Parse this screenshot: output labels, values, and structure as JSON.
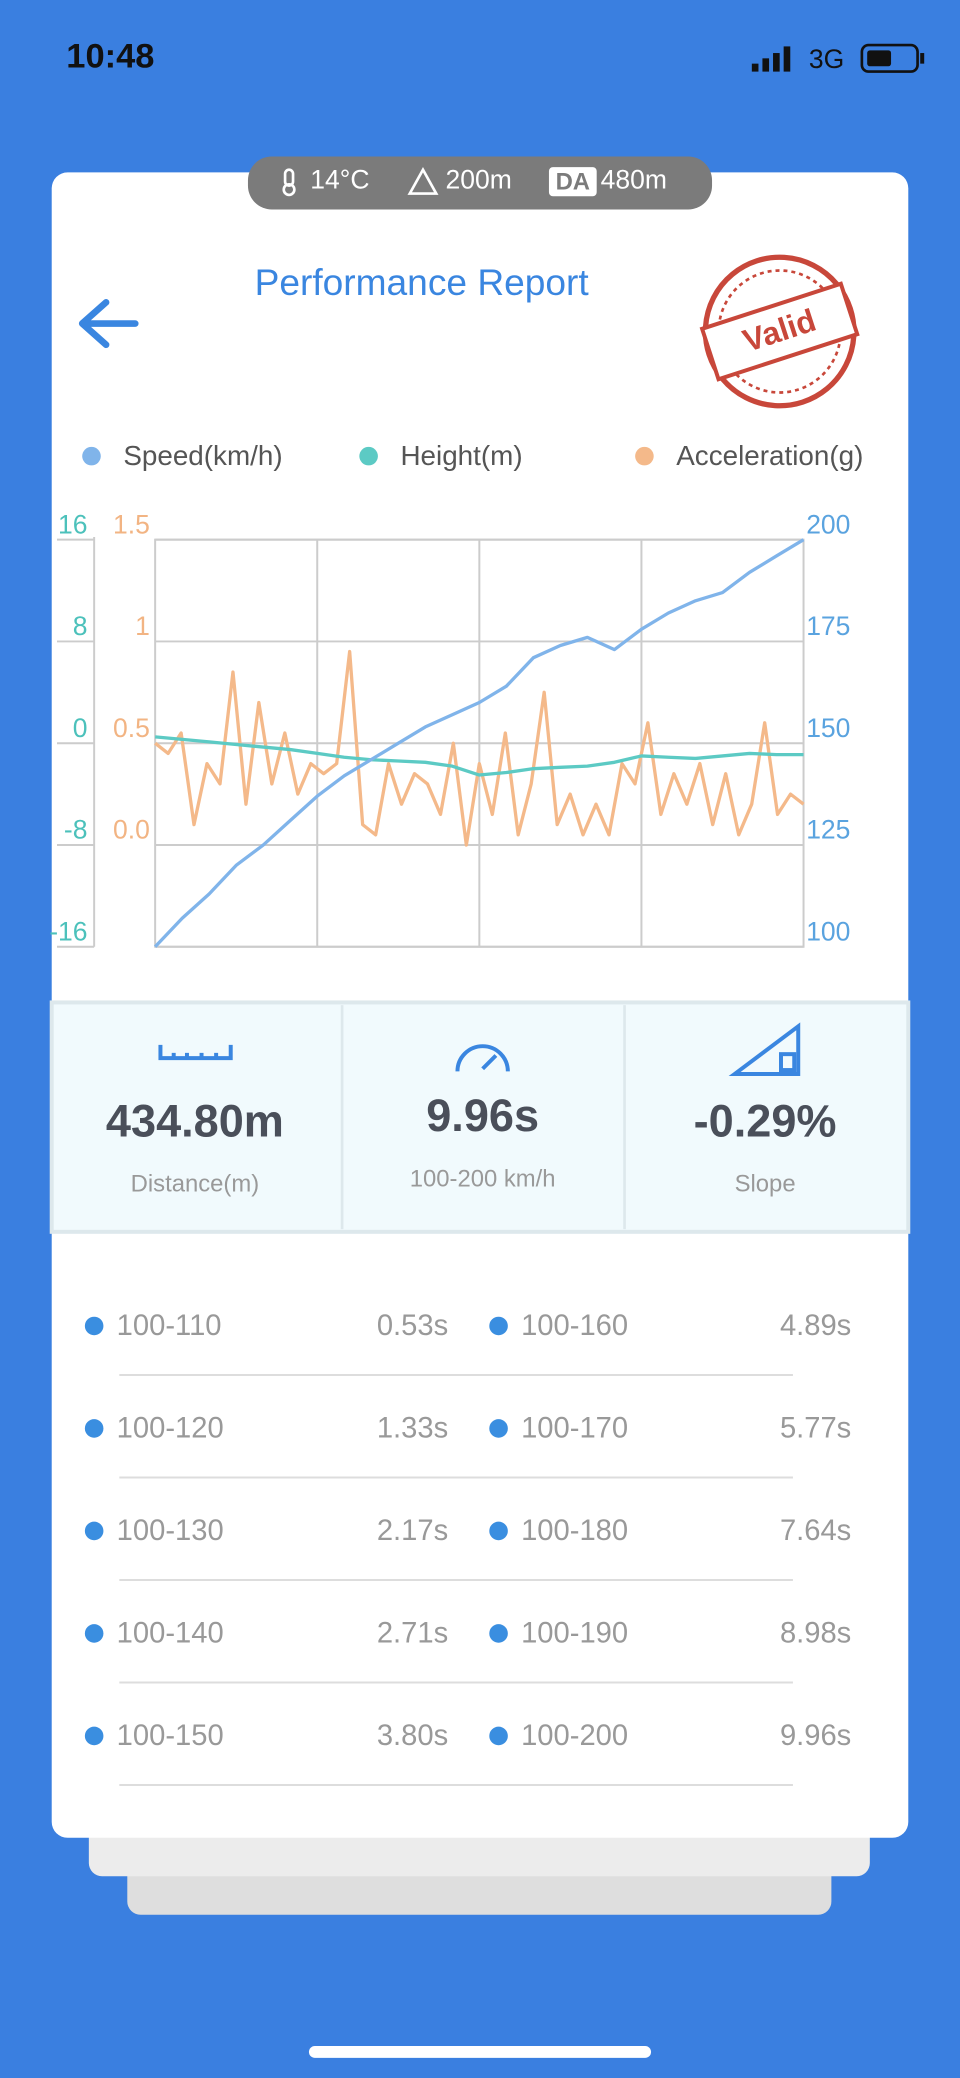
{
  "status": {
    "time": "10:48",
    "network": "3G"
  },
  "conditions": {
    "temperature": "14°C",
    "altitude": "200m",
    "da_label": "DA",
    "density_altitude": "480m"
  },
  "header": {
    "title": "Performance Report",
    "stamp": "Valid"
  },
  "chart_data": {
    "type": "line",
    "grid": true,
    "series": [
      {
        "name": "Speed(km/h)",
        "color": "#80b4ea",
        "axis": "y2",
        "values": [
          100,
          107,
          113,
          120,
          125,
          131,
          137,
          142,
          146,
          150,
          154,
          157,
          160,
          164,
          171,
          174,
          176,
          173,
          178,
          182,
          185,
          187,
          192,
          196,
          200
        ]
      },
      {
        "name": "Height(m)",
        "color": "#5ccac4",
        "axis": "y",
        "values": [
          0.5,
          0.3,
          0.1,
          -0.1,
          -0.3,
          -0.5,
          -0.8,
          -1.1,
          -1.3,
          -1.4,
          -1.5,
          -1.8,
          -2.5,
          -2.3,
          -2,
          -1.9,
          -1.8,
          -1.5,
          -1,
          -1.1,
          -1.2,
          -1,
          -0.8,
          -0.9,
          -0.9
        ]
      },
      {
        "name": "Acceleration(g)",
        "color": "#f4b98a",
        "axis": "y3",
        "values": [
          0.5,
          0.45,
          0.55,
          0.1,
          0.4,
          0.3,
          0.85,
          0.2,
          0.7,
          0.3,
          0.55,
          0.25,
          0.4,
          0.35,
          0.4,
          0.95,
          0.1,
          0.05,
          0.4,
          0.2,
          0.35,
          0.3,
          0.15,
          0.5,
          0.0,
          0.4,
          0.15,
          0.55,
          0.05,
          0.3,
          0.75,
          0.1,
          0.25,
          0.05,
          0.2,
          0.05,
          0.4,
          0.3,
          0.6,
          0.15,
          0.35,
          0.2,
          0.4,
          0.1,
          0.35,
          0.05,
          0.2,
          0.6,
          0.15,
          0.25,
          0.2
        ]
      }
    ],
    "ylim": [
      -16,
      16
    ],
    "yticks": [
      16,
      8,
      0,
      -8,
      -16
    ],
    "y3lim": [
      -0.5,
      1.5
    ],
    "y3ticks": [
      1.5,
      1,
      0.5,
      {
        "value": 0,
        "label": "0.0"
      }
    ],
    "y2lim": [
      100,
      200
    ],
    "y2ticks": [
      200,
      175,
      150,
      125,
      100
    ]
  },
  "stats": [
    {
      "value": "434.80m",
      "label": "Distance(m)"
    },
    {
      "value": "9.96s",
      "label": "100-200 km/h"
    },
    {
      "value": "-0.29%",
      "label": "Slope"
    }
  ],
  "splits": [
    [
      [
        "100-110",
        "0.53s"
      ],
      [
        "100-160",
        "4.89s"
      ]
    ],
    [
      [
        "100-120",
        "1.33s"
      ],
      [
        "100-170",
        "5.77s"
      ]
    ],
    [
      [
        "100-130",
        "2.17s"
      ],
      [
        "100-180",
        "7.64s"
      ]
    ],
    [
      [
        "100-140",
        "2.71s"
      ],
      [
        "100-190",
        "8.98s"
      ]
    ],
    [
      [
        "100-150",
        "3.80s"
      ],
      [
        "100-200",
        "9.96s"
      ]
    ]
  ]
}
